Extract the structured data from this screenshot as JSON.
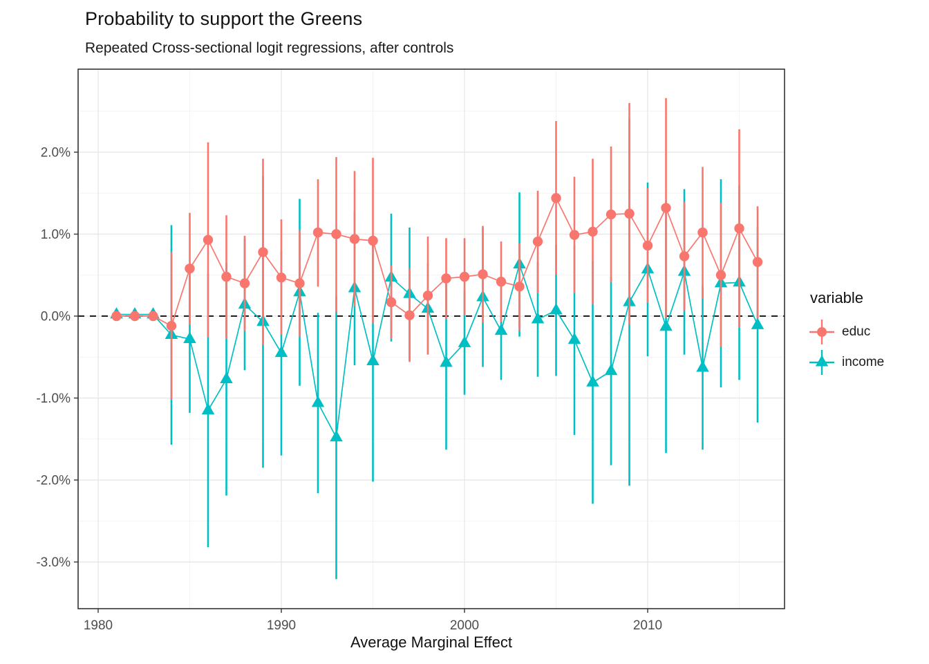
{
  "title": "Probability to support the Greens",
  "subtitle": "Repeated Cross-sectional logit regressions, after controls",
  "x_axis": {
    "label": "Average Marginal Effect",
    "tick_labels": [
      "1980",
      "1990",
      "2000",
      "2010"
    ]
  },
  "y_axis": {
    "label": "",
    "tick_labels": [
      "2.0%",
      "1.0%",
      "0.0%",
      "-1.0%",
      "-2.0%",
      "-3.0%"
    ]
  },
  "legend": {
    "title": "variable",
    "entries": [
      {
        "label": "educ",
        "color": "#F8766D",
        "marker": "circle"
      },
      {
        "label": "income",
        "color": "#00BFC4",
        "marker": "triangle"
      }
    ]
  },
  "colors": {
    "educ": "#F8766D",
    "income": "#00BFC4",
    "grid_major": "#E8E8E8",
    "grid_minor": "#F3F3F3",
    "panel_border": "#333333",
    "tick_text": "#4D4D4D",
    "reference_line": "#000000"
  },
  "chart_data": {
    "type": "line",
    "subtype": "pointrange-with-error-bars",
    "title": "Probability to support the Greens",
    "subtitle": "Repeated Cross-sectional logit regressions, after controls",
    "xlabel": "Average Marginal Effect",
    "ylabel": "",
    "unit": "percent",
    "x": [
      1981,
      1982,
      1983,
      1984,
      1985,
      1986,
      1987,
      1988,
      1989,
      1990,
      1991,
      1992,
      1993,
      1994,
      1995,
      1996,
      1997,
      1998,
      1999,
      2000,
      2001,
      2002,
      2003,
      2004,
      2005,
      2006,
      2007,
      2008,
      2009,
      2010,
      2011,
      2012,
      2013,
      2014,
      2015,
      2016
    ],
    "series": [
      {
        "name": "educ",
        "color": "#F8766D",
        "marker": "circle",
        "values": [
          0.0,
          0.0,
          0.0,
          -0.12,
          0.58,
          0.93,
          0.48,
          0.4,
          0.78,
          0.47,
          0.4,
          1.02,
          1.0,
          0.94,
          0.92,
          0.17,
          0.01,
          0.25,
          0.46,
          0.48,
          0.51,
          0.42,
          0.36,
          0.91,
          1.44,
          0.99,
          1.03,
          1.24,
          1.25,
          0.86,
          1.32,
          0.73,
          1.02,
          0.5,
          1.07,
          0.66
        ],
        "ci_low": [
          -0.04,
          -0.04,
          -0.05,
          -1.02,
          -0.11,
          -0.26,
          -0.28,
          -0.18,
          -0.35,
          -0.23,
          -0.25,
          0.36,
          0.05,
          0.12,
          -0.09,
          -0.28,
          -0.56,
          -0.47,
          -0.04,
          0.01,
          -0.08,
          -0.07,
          -0.18,
          0.28,
          0.5,
          0.28,
          0.14,
          0.41,
          -0.1,
          0.16,
          -0.02,
          0.07,
          0.21,
          -0.38,
          -0.14,
          -0.03
        ],
        "ci_high": [
          0.04,
          0.04,
          0.05,
          0.78,
          1.26,
          2.12,
          1.23,
          0.98,
          1.92,
          1.18,
          1.05,
          1.67,
          1.94,
          1.77,
          1.93,
          0.62,
          0.58,
          0.97,
          0.95,
          0.95,
          1.1,
          0.91,
          0.89,
          1.53,
          2.38,
          1.7,
          1.92,
          2.07,
          2.6,
          1.56,
          2.66,
          1.39,
          1.82,
          1.38,
          2.28,
          1.34
        ]
      },
      {
        "name": "income",
        "color": "#00BFC4",
        "marker": "triangle",
        "values": [
          0.02,
          0.02,
          0.02,
          -0.23,
          -0.28,
          -1.15,
          -0.77,
          0.14,
          -0.07,
          -0.45,
          0.29,
          -1.06,
          -1.48,
          0.34,
          -0.55,
          0.47,
          0.27,
          0.09,
          -0.57,
          -0.33,
          0.23,
          -0.18,
          0.63,
          -0.04,
          0.07,
          -0.29,
          -0.81,
          -0.67,
          0.17,
          0.57,
          -0.13,
          0.54,
          -0.63,
          0.4,
          0.41,
          -0.11
        ],
        "ci_low": [
          -0.03,
          -0.03,
          -0.04,
          -1.57,
          -1.18,
          -2.82,
          -2.19,
          -0.66,
          -1.85,
          -1.7,
          -0.85,
          -2.16,
          -3.21,
          -0.6,
          -2.02,
          -0.31,
          -0.54,
          -0.46,
          -1.63,
          -0.96,
          -0.62,
          -0.78,
          -0.25,
          -0.74,
          -0.73,
          -1.45,
          -2.29,
          -1.82,
          -2.07,
          -0.49,
          -1.67,
          -0.47,
          -1.63,
          -0.87,
          -0.78,
          -1.3
        ],
        "ci_high": [
          0.07,
          0.07,
          0.08,
          1.11,
          0.62,
          0.52,
          0.65,
          0.94,
          1.71,
          0.8,
          1.43,
          0.04,
          0.25,
          1.28,
          0.92,
          1.25,
          1.08,
          0.64,
          0.49,
          0.3,
          1.08,
          0.42,
          1.51,
          0.66,
          0.87,
          0.87,
          0.67,
          0.48,
          2.41,
          1.63,
          1.41,
          1.55,
          0.37,
          1.67,
          1.6,
          1.08
        ]
      }
    ],
    "x_ticks": [
      1980,
      1990,
      2000,
      2010
    ],
    "x_minor_ticks": [
      1985,
      1995,
      2005,
      2015
    ],
    "y_ticks": [
      2,
      1,
      0,
      -1,
      -2,
      -3
    ],
    "y_minor_ticks": [
      2.5,
      1.5,
      0.5,
      -0.5,
      -1.5,
      -2.5
    ],
    "xlim": [
      1978.9,
      2017.5
    ],
    "ylim": [
      -3.57,
      3.01
    ],
    "grid": true,
    "legend_position": "right",
    "reference_line_y": 0
  }
}
